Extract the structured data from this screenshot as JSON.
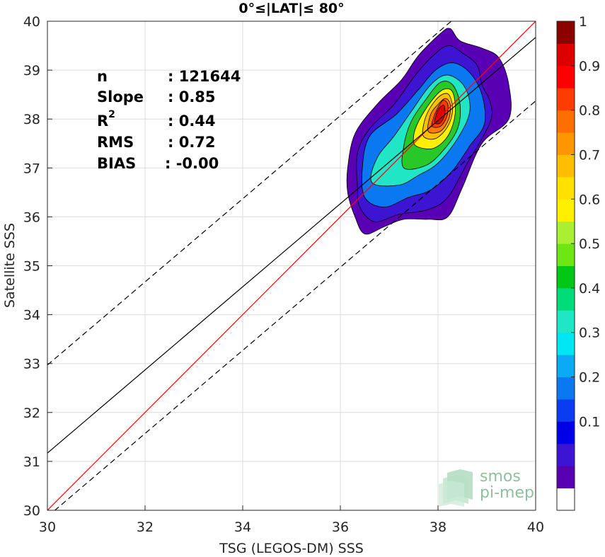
{
  "chart_data": {
    "type": "heatmap",
    "subtype": "density-contour-scatter",
    "title": "0°≤|LAT|≤ 80°",
    "xlabel": "TSG (LEGOS-DM) SSS",
    "ylabel": "Satellite SSS",
    "xlim": [
      30,
      40
    ],
    "ylim": [
      30,
      40
    ],
    "xticks": [
      "30",
      "32",
      "34",
      "36",
      "38",
      "40"
    ],
    "yticks": [
      "30",
      "31",
      "32",
      "33",
      "34",
      "35",
      "36",
      "37",
      "38",
      "39",
      "40"
    ],
    "grid": true,
    "stats": [
      {
        "label": "n",
        "value": ": 121644"
      },
      {
        "label": "Slope",
        "value": ": 0.85"
      },
      {
        "label": "R",
        "sup": "2",
        "value": ": 0.44"
      },
      {
        "label": "RMS",
        "value": ": 0.72"
      },
      {
        "label": "BIAS",
        "value": ": -0.00"
      }
    ],
    "lines": [
      {
        "name": "identity",
        "color": "#ff0000",
        "dashed": false,
        "slope": 1.0,
        "intercept": 0.0
      },
      {
        "name": "fit",
        "color": "#000000",
        "dashed": false,
        "slope": 0.85,
        "intercept": 5.67
      },
      {
        "name": "fit-upper",
        "color": "#000000",
        "dashed": true,
        "slope": 0.85,
        "intercept": 7.47
      },
      {
        "name": "fit-lower",
        "color": "#000000",
        "dashed": true,
        "slope": 0.85,
        "intercept": 4.37
      }
    ],
    "contours": [
      {
        "level": 0.05,
        "color": "#5a00b4",
        "points": [
          [
            36.3,
            36.0
          ],
          [
            36.5,
            35.65
          ],
          [
            36.9,
            35.8
          ],
          [
            37.3,
            35.95
          ],
          [
            37.8,
            35.95
          ],
          [
            38.2,
            36.0
          ],
          [
            38.5,
            36.6
          ],
          [
            38.9,
            37.5
          ],
          [
            39.45,
            38.0
          ],
          [
            39.45,
            38.7
          ],
          [
            39.25,
            39.25
          ],
          [
            38.9,
            39.45
          ],
          [
            38.45,
            39.6
          ],
          [
            38.25,
            39.85
          ],
          [
            38.05,
            39.75
          ],
          [
            37.6,
            39.3
          ],
          [
            37.25,
            38.8
          ],
          [
            36.75,
            38.3
          ],
          [
            36.3,
            37.7
          ],
          [
            36.15,
            37.0
          ],
          [
            36.15,
            36.5
          ]
        ]
      },
      {
        "level": 0.1,
        "color": "#3c14d2",
        "points": [
          [
            36.4,
            36.2
          ],
          [
            36.7,
            35.9
          ],
          [
            37.2,
            36.05
          ],
          [
            37.8,
            36.15
          ],
          [
            38.2,
            36.4
          ],
          [
            38.6,
            37.1
          ],
          [
            38.9,
            37.6
          ],
          [
            39.1,
            38.05
          ],
          [
            39.05,
            38.4
          ],
          [
            38.9,
            38.7
          ],
          [
            38.8,
            39.1
          ],
          [
            38.5,
            39.35
          ],
          [
            38.2,
            39.5
          ],
          [
            37.85,
            39.25
          ],
          [
            37.5,
            38.85
          ],
          [
            37.1,
            38.3
          ],
          [
            36.6,
            37.8
          ],
          [
            36.35,
            37.3
          ],
          [
            36.35,
            36.6
          ]
        ]
      },
      {
        "level": 0.3,
        "color": "#0a78f0",
        "points": [
          [
            36.5,
            36.4
          ],
          [
            36.9,
            36.2
          ],
          [
            37.4,
            36.4
          ],
          [
            37.85,
            36.55
          ],
          [
            38.3,
            36.95
          ],
          [
            38.65,
            37.45
          ],
          [
            38.95,
            37.9
          ],
          [
            38.9,
            38.5
          ],
          [
            38.65,
            38.95
          ],
          [
            38.3,
            39.15
          ],
          [
            37.95,
            39.0
          ],
          [
            37.6,
            38.6
          ],
          [
            37.15,
            38.1
          ],
          [
            36.6,
            37.65
          ],
          [
            36.45,
            37.0
          ]
        ]
      },
      {
        "level": 0.4,
        "color": "#20e6c6",
        "points": [
          [
            36.65,
            36.7
          ],
          [
            37.2,
            36.65
          ],
          [
            37.6,
            36.85
          ],
          [
            38.0,
            37.1
          ],
          [
            38.4,
            37.6
          ],
          [
            38.65,
            38.15
          ],
          [
            38.55,
            38.65
          ],
          [
            38.2,
            38.9
          ],
          [
            37.85,
            38.7
          ],
          [
            37.45,
            38.15
          ],
          [
            37.1,
            37.65
          ],
          [
            36.75,
            37.2
          ]
        ]
      },
      {
        "level": 0.5,
        "color": "#28c828",
        "points": [
          [
            37.3,
            37.0
          ],
          [
            37.75,
            37.05
          ],
          [
            38.1,
            37.35
          ],
          [
            38.4,
            37.8
          ],
          [
            38.45,
            38.3
          ],
          [
            38.3,
            38.7
          ],
          [
            38.05,
            38.75
          ],
          [
            37.75,
            38.4
          ],
          [
            37.45,
            37.95
          ],
          [
            37.3,
            37.45
          ]
        ]
      },
      {
        "level": 0.6,
        "color": "#fff000",
        "points": [
          [
            37.55,
            37.45
          ],
          [
            37.9,
            37.4
          ],
          [
            38.2,
            37.65
          ],
          [
            38.35,
            38.1
          ],
          [
            38.3,
            38.55
          ],
          [
            38.1,
            38.6
          ],
          [
            37.85,
            38.35
          ],
          [
            37.6,
            37.95
          ],
          [
            37.5,
            37.65
          ]
        ]
      },
      {
        "level": 0.7,
        "color": "#ffbe00",
        "points": [
          [
            37.7,
            37.65
          ],
          [
            37.95,
            37.6
          ],
          [
            38.2,
            37.85
          ],
          [
            38.3,
            38.2
          ],
          [
            38.22,
            38.5
          ],
          [
            38.05,
            38.48
          ],
          [
            37.85,
            38.25
          ],
          [
            37.72,
            37.95
          ]
        ]
      },
      {
        "level": 0.8,
        "color": "#ff7a00",
        "points": [
          [
            37.8,
            37.75
          ],
          [
            38.05,
            37.75
          ],
          [
            38.22,
            38.0
          ],
          [
            38.25,
            38.3
          ],
          [
            38.15,
            38.42
          ],
          [
            38.0,
            38.3
          ],
          [
            37.85,
            38.1
          ]
        ]
      },
      {
        "level": 0.9,
        "color": "#ff3c00",
        "points": [
          [
            37.88,
            37.85
          ],
          [
            38.05,
            37.85
          ],
          [
            38.18,
            38.05
          ],
          [
            38.2,
            38.3
          ],
          [
            38.1,
            38.38
          ],
          [
            37.98,
            38.2
          ],
          [
            37.9,
            38.0
          ]
        ]
      },
      {
        "level": 1.0,
        "color": "#dc0000",
        "points": [
          [
            37.93,
            37.92
          ],
          [
            38.05,
            37.92
          ],
          [
            38.14,
            38.1
          ],
          [
            38.12,
            38.28
          ],
          [
            38.02,
            38.22
          ],
          [
            37.95,
            38.05
          ]
        ]
      }
    ],
    "colorbar": {
      "ticks": [
        "0.1",
        "0.2",
        "0.3",
        "0.4",
        "0.5",
        "0.6",
        "0.7",
        "0.8",
        "0.9",
        "1"
      ],
      "tick_values": [
        0.1,
        0.2,
        0.3,
        0.4,
        0.5,
        0.6,
        0.7,
        0.8,
        0.9,
        1.0
      ],
      "colors": [
        "#ffffff",
        "#5a00b4",
        "#3c14d2",
        "#0000e6",
        "#0a3cf0",
        "#0a78f0",
        "#0aaaf5",
        "#00e6f5",
        "#20e6c6",
        "#00dc7a",
        "#00c814",
        "#6ee614",
        "#aaf032",
        "#fff000",
        "#ffe100",
        "#ffbe00",
        "#ff9600",
        "#ff6e00",
        "#ff3c00",
        "#ff0000",
        "#dc0000",
        "#8c0000"
      ]
    }
  },
  "watermark": {
    "line1": "smos",
    "line2": "pi-mep",
    "color": "#8fbf9f"
  }
}
